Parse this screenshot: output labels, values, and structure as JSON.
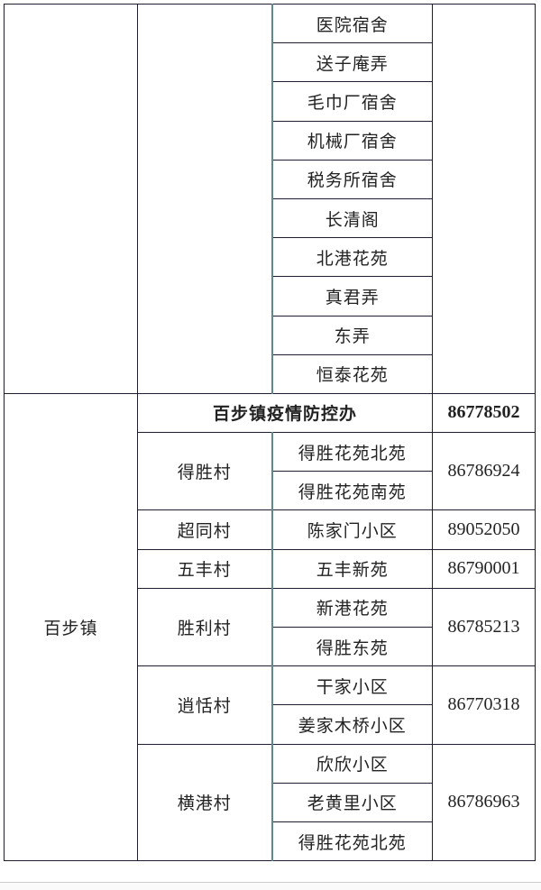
{
  "top_section": {
    "communities": [
      "医院宿舍",
      "送子庵弄",
      "毛巾厂宿舍",
      "机械厂宿舍",
      "税务所宿舍",
      "长清阁",
      "北港花苑",
      "真君弄",
      "东弄",
      "恒泰花苑"
    ]
  },
  "town": {
    "name": "百步镇",
    "office": {
      "name": "百步镇疫情防控办",
      "phone": "86778502"
    },
    "villages": [
      {
        "name": "得胜村",
        "communities": [
          "得胜花苑北苑",
          "得胜花苑南苑"
        ],
        "phone": "86786924"
      },
      {
        "name": "超同村",
        "communities": [
          "陈家门小区"
        ],
        "phone": "89052050"
      },
      {
        "name": "五丰村",
        "communities": [
          "五丰新苑"
        ],
        "phone": "86790001"
      },
      {
        "name": "胜利村",
        "communities": [
          "新港花苑",
          "得胜东苑"
        ],
        "phone": "86785213"
      },
      {
        "name": "逍恬村",
        "communities": [
          "干家小区",
          "姜家木桥小区"
        ],
        "phone": "86770318"
      },
      {
        "name": "横港村",
        "communities": [
          "欣欣小区",
          "老黄里小区",
          "得胜花苑北苑"
        ],
        "phone": "86786963"
      }
    ]
  }
}
